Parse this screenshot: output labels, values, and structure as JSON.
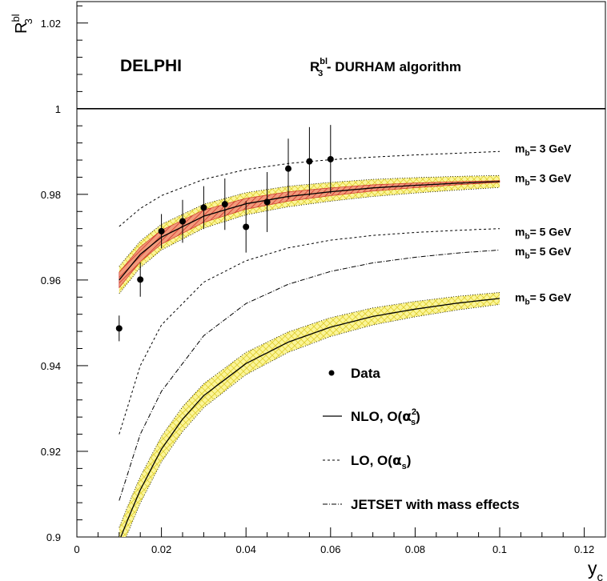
{
  "chart_data": {
    "type": "line",
    "title": "DELPHI",
    "subtitle": {
      "main": "R",
      "sup": "bl",
      "sub": "3",
      "rest": " - DURHAM algorithm"
    },
    "xlabel": {
      "main": "y",
      "sub": "c"
    },
    "ylabel": {
      "main": "R",
      "sup": "bl",
      "sub": "3"
    },
    "xlim": [
      0,
      0.125
    ],
    "ylim": [
      0.9,
      1.025
    ],
    "x_ticks": [
      {
        "v": 0,
        "label": "0"
      },
      {
        "v": 0.02,
        "label": "0.02"
      },
      {
        "v": 0.04,
        "label": "0.04"
      },
      {
        "v": 0.06,
        "label": "0.06"
      },
      {
        "v": 0.08,
        "label": "0.08"
      },
      {
        "v": 0.1,
        "label": "0.1"
      },
      {
        "v": 0.12,
        "label": "0.12"
      }
    ],
    "y_ticks": [
      {
        "v": 0.9,
        "label": "0.9"
      },
      {
        "v": 0.92,
        "label": "0.92"
      },
      {
        "v": 0.94,
        "label": "0.94"
      },
      {
        "v": 0.96,
        "label": "0.96"
      },
      {
        "v": 0.98,
        "label": "0.98"
      },
      {
        "v": 1.0,
        "label": "1"
      },
      {
        "v": 1.02,
        "label": "1.02"
      }
    ],
    "reference_line": 1.0,
    "data_points": [
      {
        "x": 0.01,
        "y": 0.9487,
        "err": 0.003
      },
      {
        "x": 0.015,
        "y": 0.9601,
        "err": 0.004
      },
      {
        "x": 0.02,
        "y": 0.9714,
        "err": 0.004
      },
      {
        "x": 0.025,
        "y": 0.9737,
        "err": 0.005
      },
      {
        "x": 0.03,
        "y": 0.9769,
        "err": 0.005
      },
      {
        "x": 0.035,
        "y": 0.9777,
        "err": 0.006
      },
      {
        "x": 0.04,
        "y": 0.9724,
        "err": 0.006
      },
      {
        "x": 0.045,
        "y": 0.9782,
        "err": 0.007
      },
      {
        "x": 0.05,
        "y": 0.986,
        "err": 0.007
      },
      {
        "x": 0.055,
        "y": 0.9877,
        "err": 0.008
      },
      {
        "x": 0.06,
        "y": 0.9882,
        "err": 0.008
      }
    ],
    "curves": [
      {
        "kind": "dashed",
        "label": {
          "m": "m",
          "sub": "b",
          "rest": "= 3 GeV"
        },
        "label_y": 0.9907,
        "x": [
          0.01,
          0.015,
          0.02,
          0.03,
          0.04,
          0.05,
          0.06,
          0.07,
          0.08,
          0.09,
          0.1
        ],
        "y": [
          0.9725,
          0.9767,
          0.9797,
          0.9835,
          0.9858,
          0.9872,
          0.9881,
          0.9887,
          0.9892,
          0.9896,
          0.99
        ]
      },
      {
        "kind": "solid",
        "band": "yellow",
        "inner_band": "red",
        "label": {
          "m": "m",
          "sub": "b",
          "rest": "= 3 GeV"
        },
        "label_y": 0.9838,
        "x": [
          0.01,
          0.015,
          0.02,
          0.03,
          0.04,
          0.05,
          0.06,
          0.07,
          0.08,
          0.09,
          0.1
        ],
        "y": [
          0.96,
          0.966,
          0.97,
          0.9749,
          0.9778,
          0.9795,
          0.9806,
          0.9815,
          0.9821,
          0.9826,
          0.983
        ]
      },
      {
        "kind": "dashed",
        "label": {
          "m": "m",
          "sub": "b",
          "rest": "= 5 GeV"
        },
        "label_y": 0.9713,
        "x": [
          0.01,
          0.015,
          0.02,
          0.03,
          0.04,
          0.05,
          0.06,
          0.07,
          0.08,
          0.09,
          0.1
        ],
        "y": [
          0.924,
          0.94,
          0.9495,
          0.9595,
          0.9645,
          0.9675,
          0.9693,
          0.9704,
          0.9711,
          0.9716,
          0.972
        ]
      },
      {
        "kind": "dashdot",
        "label": {
          "m": "m",
          "sub": "b",
          "rest": "= 5 GeV"
        },
        "label_y": 0.9667,
        "x": [
          0.01,
          0.015,
          0.02,
          0.03,
          0.04,
          0.05,
          0.06,
          0.07,
          0.08,
          0.09,
          0.1
        ],
        "y": [
          0.9085,
          0.924,
          0.934,
          0.947,
          0.9545,
          0.959,
          0.962,
          0.964,
          0.9653,
          0.9663,
          0.967
        ]
      },
      {
        "kind": "solid",
        "band": "yellow",
        "label": {
          "m": "m",
          "sub": "b",
          "rest": "= 5 GeV"
        },
        "label_y": 0.956,
        "x": [
          0.01,
          0.012,
          0.015,
          0.02,
          0.025,
          0.03,
          0.04,
          0.05,
          0.06,
          0.07,
          0.08,
          0.09,
          0.1
        ],
        "y": [
          0.899,
          0.904,
          0.911,
          0.9205,
          0.9275,
          0.933,
          0.9405,
          0.9455,
          0.949,
          0.9515,
          0.9532,
          0.9546,
          0.9557
        ]
      }
    ],
    "legend": [
      {
        "kind": "marker",
        "text": "Data"
      },
      {
        "kind": "solid",
        "text": "NLO, O(",
        "greek": "α",
        "sub": "s",
        "sup": "2",
        "close": ")"
      },
      {
        "kind": "dashed",
        "text": "LO, O(",
        "greek": "α",
        "sub": "s",
        "close": ")"
      },
      {
        "kind": "dashdot",
        "text": "JETSET with mass effects"
      }
    ],
    "legend_position": "bottom-right",
    "colors": {
      "band": "#f7ee6a",
      "band_hatch": "#e2d12a",
      "inner_band": "#c8261f",
      "line": "#000000"
    }
  }
}
